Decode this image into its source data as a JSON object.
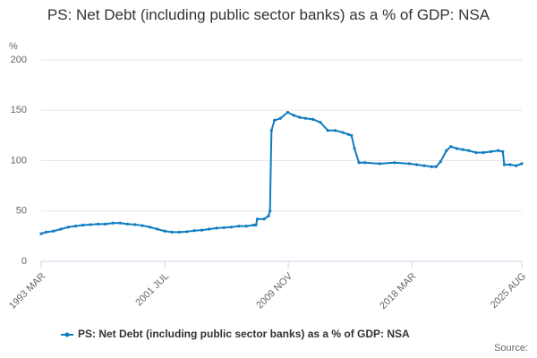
{
  "chart_data": {
    "type": "line",
    "title": "PS: Net Debt (including public sector banks) as a % of GDP: NSA",
    "y_label": "%",
    "source": "Source:",
    "x": [
      1993.17,
      1993.5,
      1994,
      1994.5,
      1995,
      1995.5,
      1996,
      1996.5,
      1997,
      1997.5,
      1998,
      1998.5,
      1999,
      1999.5,
      2000,
      2000.5,
      2001,
      2001.5,
      2002,
      2002.5,
      2003,
      2003.5,
      2004,
      2004.5,
      2005,
      2005.5,
      2006,
      2006.5,
      2007,
      2007.5,
      2007.65,
      2007.75,
      2008.2,
      2008.5,
      2008.6,
      2008.7,
      2008.9,
      2009.3,
      2009.8,
      2010.2,
      2010.6,
      2011,
      2011.5,
      2012,
      2012.5,
      2013,
      2013.5,
      2013.9,
      2014.1,
      2014.3,
      2014.6,
      2015,
      2016,
      2017,
      2018,
      2018.5,
      2019,
      2019.5,
      2019.8,
      2020.1,
      2020.5,
      2020.8,
      2021.2,
      2021.6,
      2022,
      2022.5,
      2023,
      2023.5,
      2024,
      2024.3,
      2024.4,
      2024.8,
      2025.2,
      2025.58
    ],
    "series": [
      {
        "name": "PS: Net Debt (including public sector banks) as a % of GDP: NSA",
        "color": "#0f7cbf",
        "values": [
          27.5,
          29,
          30,
          32,
          34,
          35,
          36,
          36.5,
          37,
          37,
          38,
          38,
          37,
          36.5,
          35.5,
          34,
          32,
          30,
          29,
          29,
          29.5,
          30.5,
          31,
          32,
          33,
          33.5,
          34,
          35,
          35,
          36,
          36,
          42,
          42,
          45,
          50,
          130,
          140,
          142,
          148,
          145,
          143,
          142,
          141,
          138,
          130,
          130,
          128,
          126,
          125,
          112,
          98,
          98,
          97,
          98,
          97,
          96,
          95,
          94,
          94,
          99,
          110,
          114,
          112,
          111,
          110,
          108,
          108,
          109,
          110,
          109,
          96,
          96,
          95,
          97
        ]
      }
    ],
    "xlim": [
      1993.17,
      2025.58
    ],
    "xticks": [
      {
        "value": 1993.17,
        "label": "1993 MAR"
      },
      {
        "value": 2001.5,
        "label": "2001 JUL"
      },
      {
        "value": 2009.83,
        "label": "2009 NOV"
      },
      {
        "value": 2018.17,
        "label": "2018 MAR"
      },
      {
        "value": 2025.58,
        "label": "2025 AUG"
      }
    ],
    "ylim": [
      0,
      200
    ],
    "yticks": [
      0,
      50,
      100,
      150,
      200
    ],
    "grid": true
  }
}
